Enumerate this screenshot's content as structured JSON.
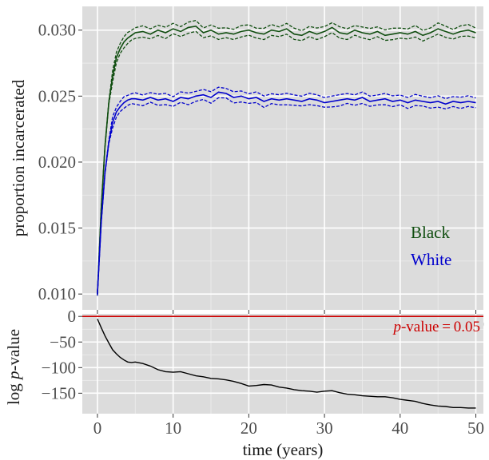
{
  "chart_data": [
    {
      "type": "line",
      "title": "",
      "xlabel": "",
      "ylabel": "proportion incarcerated",
      "xlim": [
        -2,
        51
      ],
      "ylim": [
        0.0088,
        0.0318
      ],
      "x_ticks": [
        0,
        10,
        20,
        30,
        40,
        50
      ],
      "x_tick_labels": [
        "0",
        "10",
        "20",
        "30",
        "40",
        "50"
      ],
      "y_ticks": [
        0.01,
        0.015,
        0.02,
        0.025,
        0.03
      ],
      "y_tick_labels": [
        "0.010",
        "0.015",
        "0.020",
        "0.025",
        "0.030"
      ],
      "grid": true,
      "legend_placement": "right (inside plot, lower right)",
      "background_color": "#dcdcdc",
      "series": [
        {
          "name": "Black",
          "color": "#0f4d0f",
          "x": [
            0,
            0.5,
            1,
            1.5,
            2,
            2.5,
            3,
            3.5,
            4,
            4.5,
            5,
            6,
            7,
            8,
            9,
            10,
            11,
            12,
            13,
            14,
            15,
            16,
            17,
            18,
            19,
            20,
            21,
            22,
            23,
            24,
            25,
            26,
            27,
            28,
            29,
            30,
            31,
            32,
            33,
            34,
            35,
            36,
            37,
            38,
            39,
            40,
            41,
            42,
            43,
            44,
            45,
            46,
            47,
            48,
            49,
            50
          ],
          "values": [
            0.01,
            0.0165,
            0.0212,
            0.0245,
            0.0265,
            0.0279,
            0.0286,
            0.0291,
            0.0294,
            0.0296,
            0.0298,
            0.0299,
            0.0297,
            0.03,
            0.0298,
            0.0301,
            0.0299,
            0.0302,
            0.0303,
            0.0298,
            0.03,
            0.0297,
            0.0298,
            0.0297,
            0.0299,
            0.03,
            0.0298,
            0.0297,
            0.03,
            0.0299,
            0.0301,
            0.0297,
            0.0296,
            0.0299,
            0.0297,
            0.0299,
            0.0302,
            0.0298,
            0.0297,
            0.03,
            0.0298,
            0.0297,
            0.0299,
            0.0296,
            0.0297,
            0.0298,
            0.0297,
            0.0299,
            0.0296,
            0.0298,
            0.0301,
            0.0299,
            0.0297,
            0.0299,
            0.03,
            0.0298
          ],
          "band_halfwidth": 0.0004
        },
        {
          "name": "White",
          "color": "#0000cc",
          "x": [
            0,
            0.5,
            1,
            1.5,
            2,
            2.5,
            3,
            3.5,
            4,
            4.5,
            5,
            6,
            7,
            8,
            9,
            10,
            11,
            12,
            13,
            14,
            15,
            16,
            17,
            18,
            19,
            20,
            21,
            22,
            23,
            24,
            25,
            26,
            27,
            28,
            29,
            30,
            31,
            32,
            33,
            34,
            35,
            36,
            37,
            38,
            39,
            40,
            41,
            42,
            43,
            44,
            45,
            46,
            47,
            48,
            49,
            50
          ],
          "values": [
            0.01,
            0.0155,
            0.0192,
            0.0215,
            0.023,
            0.0238,
            0.0242,
            0.0245,
            0.0247,
            0.0248,
            0.0248,
            0.0247,
            0.0249,
            0.0247,
            0.0248,
            0.0246,
            0.0249,
            0.0248,
            0.025,
            0.0251,
            0.0249,
            0.0253,
            0.0252,
            0.0249,
            0.025,
            0.0248,
            0.0249,
            0.0246,
            0.0248,
            0.0247,
            0.0248,
            0.0247,
            0.0246,
            0.0248,
            0.0247,
            0.0245,
            0.0246,
            0.0247,
            0.0248,
            0.0247,
            0.0249,
            0.0246,
            0.0247,
            0.0248,
            0.0246,
            0.0247,
            0.0245,
            0.0247,
            0.0246,
            0.0245,
            0.0246,
            0.0244,
            0.0246,
            0.0245,
            0.0246,
            0.0245
          ],
          "band_halfwidth": 0.0004
        }
      ]
    },
    {
      "type": "line",
      "title": "",
      "xlabel": "time (years)",
      "ylabel": "log p-value",
      "ylabel_parts": [
        "log ",
        "p",
        "-value"
      ],
      "xlim": [
        -2,
        51
      ],
      "ylim": [
        -190,
        5
      ],
      "x_ticks": [
        0,
        10,
        20,
        30,
        40,
        50
      ],
      "x_tick_labels": [
        "0",
        "10",
        "20",
        "30",
        "40",
        "50"
      ],
      "y_ticks": [
        0,
        -50,
        -100,
        -150
      ],
      "y_tick_labels": [
        "0",
        "−50",
        "−100",
        "−150"
      ],
      "grid": true,
      "background_color": "#dcdcdc",
      "series": [
        {
          "color": "#000000",
          "x": [
            0,
            0.5,
            1,
            1.5,
            2,
            2.5,
            3,
            3.5,
            4,
            4.5,
            5,
            6,
            7,
            8,
            9,
            10,
            11,
            12,
            13,
            14,
            15,
            16,
            17,
            18,
            19,
            20,
            21,
            22,
            23,
            24,
            25,
            26,
            27,
            28,
            29,
            30,
            31,
            32,
            33,
            34,
            35,
            36,
            37,
            38,
            39,
            40,
            41,
            42,
            43,
            44,
            45,
            46,
            47,
            48,
            49,
            50
          ],
          "values": [
            -5,
            -22,
            -38,
            -52,
            -65,
            -73,
            -80,
            -85,
            -89,
            -90,
            -89,
            -92,
            -97,
            -104,
            -108,
            -109,
            -108,
            -112,
            -116,
            -118,
            -121,
            -122,
            -124,
            -127,
            -131,
            -136,
            -135,
            -133,
            -134,
            -138,
            -140,
            -143,
            -145,
            -146,
            -148,
            -146,
            -145,
            -149,
            -152,
            -153,
            -155,
            -156,
            -157,
            -157,
            -159,
            -162,
            -164,
            -166,
            -170,
            -173,
            -175,
            -176,
            -178,
            -178,
            -179,
            -179
          ]
        }
      ],
      "reference_line": {
        "value": 0,
        "color": "#cc0000",
        "label_parts": [
          "p",
          "-value = 0.05"
        ]
      }
    }
  ]
}
